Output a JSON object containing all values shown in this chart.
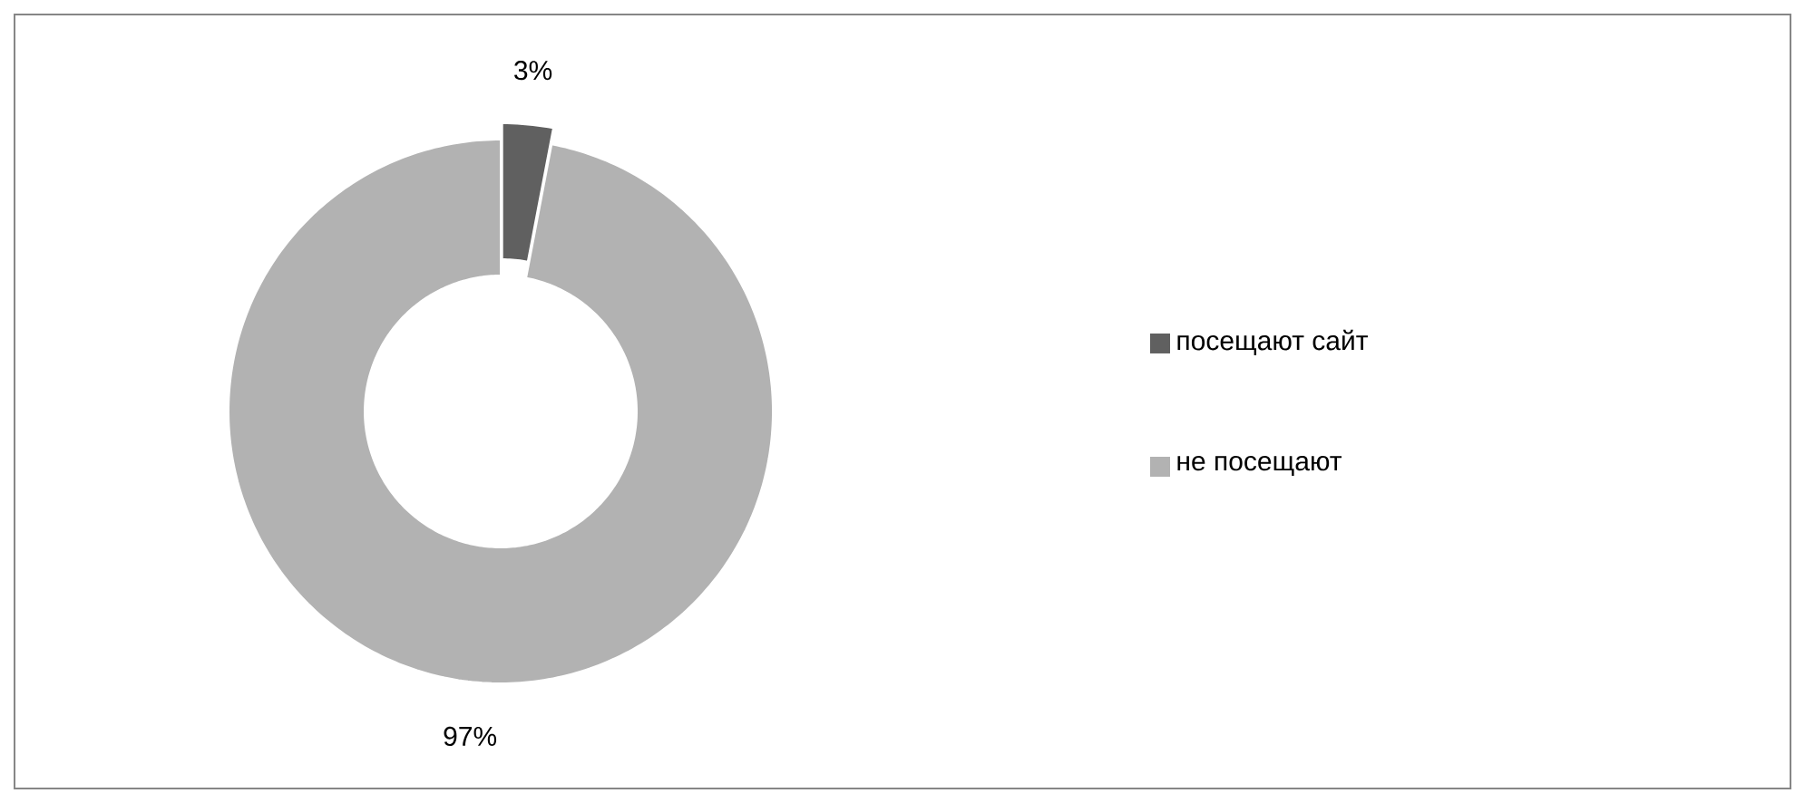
{
  "chart_data": {
    "type": "donut",
    "categories": [
      "посещают сайт",
      "не посещают"
    ],
    "values": [
      3,
      97
    ],
    "colors": [
      "#606060",
      "#b2b2b2"
    ],
    "value_labels": [
      "3%",
      "97%"
    ],
    "legend": "right"
  }
}
